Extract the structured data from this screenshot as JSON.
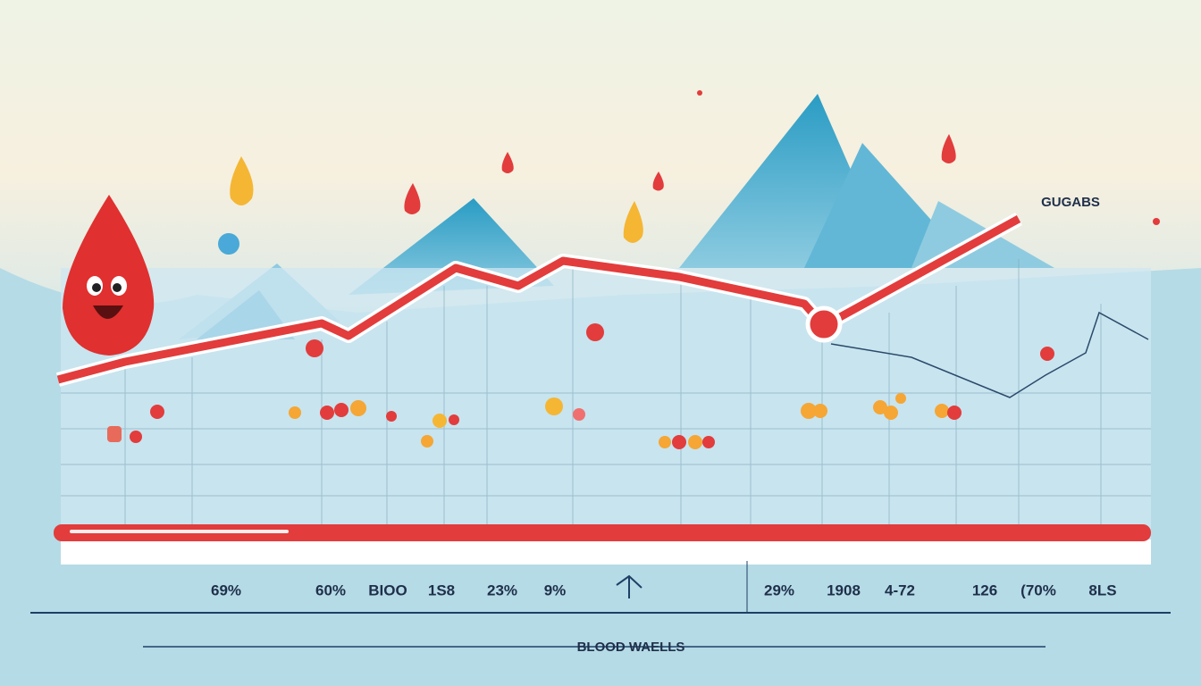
{
  "header": {
    "title": "BLOOD WAELLS",
    "peak_label": "GUGABS"
  },
  "labels": [
    "69%",
    "60%",
    "BIOO",
    "1S8",
    "23%",
    "9%",
    "29%",
    "1908",
    "4-72",
    "126",
    "(70%",
    "8LS"
  ]
}
